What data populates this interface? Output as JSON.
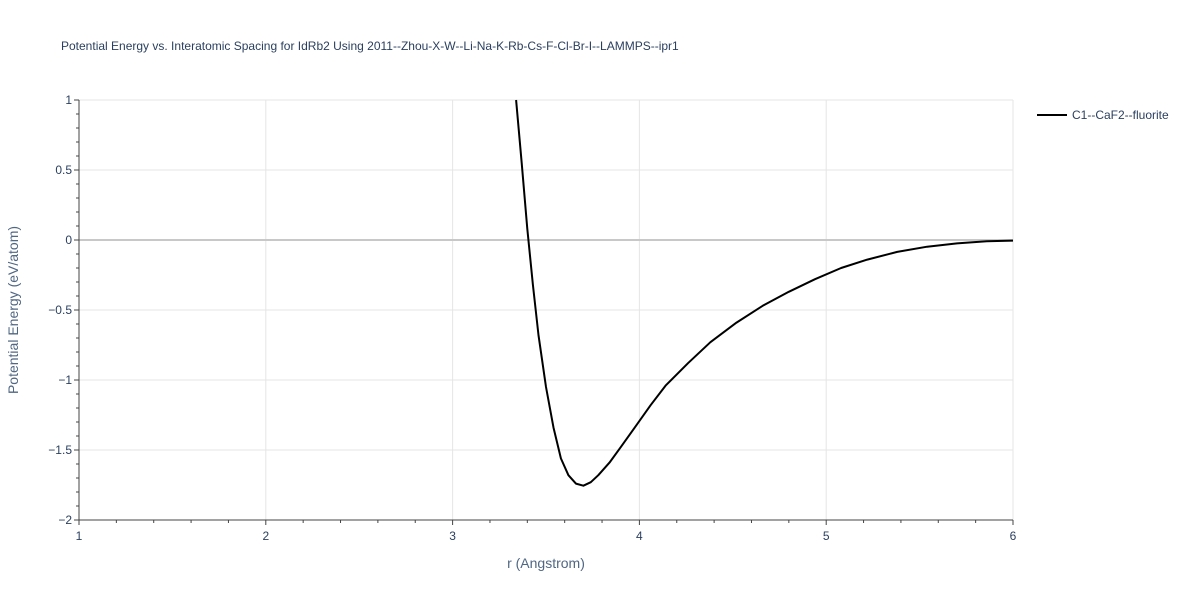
{
  "chart_data": {
    "type": "line",
    "title": "Potential Energy vs. Interatomic Spacing for IdRb2 Using 2011--Zhou-X-W--Li-Na-K-Rb-Cs-F-Cl-Br-I--LAMMPS--ipr1",
    "xlabel": "r (Angstrom)",
    "ylabel": "Potential Energy (eV/atom)",
    "xlim": [
      1,
      6
    ],
    "ylim": [
      -2,
      1
    ],
    "xticks": [
      1,
      2,
      3,
      4,
      5,
      6
    ],
    "xtick_labels": [
      "1",
      "2",
      "3",
      "4",
      "5",
      "6"
    ],
    "yticks": [
      1,
      0.5,
      0,
      -0.5,
      -1,
      -1.5,
      -2
    ],
    "ytick_labels": [
      "1",
      "0.5",
      "0",
      "−0.5",
      "−1",
      "−1.5",
      "−2"
    ],
    "grid": true,
    "legend_position": "top-right",
    "colors": {
      "line": "#000000",
      "grid": "#e5e5e5",
      "zeroline": "#c8c8c8",
      "axis_text": "#2a3f5f"
    },
    "series": [
      {
        "name": "C1--CaF2--fluorite",
        "x": [
          3.34,
          3.37,
          3.4,
          3.43,
          3.46,
          3.5,
          3.54,
          3.58,
          3.62,
          3.66,
          3.7,
          3.74,
          3.78,
          3.84,
          3.9,
          3.98,
          4.06,
          4.14,
          4.26,
          4.38,
          4.52,
          4.66,
          4.8,
          4.94,
          5.08,
          5.22,
          5.38,
          5.54,
          5.7,
          5.86,
          6.0
        ],
        "y": [
          1.0,
          0.55,
          0.08,
          -0.32,
          -0.68,
          -1.05,
          -1.34,
          -1.56,
          -1.68,
          -1.74,
          -1.755,
          -1.73,
          -1.68,
          -1.59,
          -1.48,
          -1.33,
          -1.18,
          -1.04,
          -0.88,
          -0.73,
          -0.59,
          -0.47,
          -0.37,
          -0.28,
          -0.2,
          -0.14,
          -0.085,
          -0.048,
          -0.024,
          -0.009,
          -0.004
        ]
      }
    ]
  }
}
